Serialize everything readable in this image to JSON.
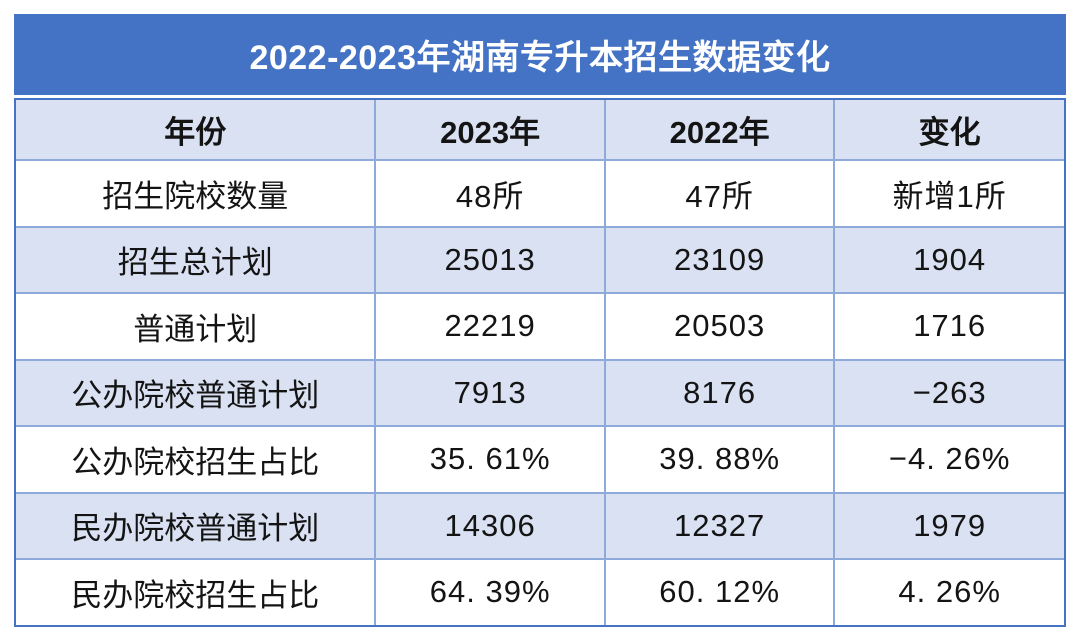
{
  "title": "2022-2023年湖南专升本招生数据变化",
  "colors": {
    "title_bg": "#4472c4",
    "title_text": "#ffffff",
    "band_bg": "#d9e1f2",
    "grid_line": "#8eaadb",
    "outer_border": "#4472c4",
    "text": "#141414"
  },
  "table": {
    "headers": [
      "年份",
      "2023年",
      "2022年",
      "变化"
    ],
    "rows": [
      {
        "label": "招生院校数量",
        "y2023": "48所",
        "y2022": "47所",
        "change": "新增1所"
      },
      {
        "label": "招生总计划",
        "y2023": "25013",
        "y2022": "23109",
        "change": "1904"
      },
      {
        "label": "普通计划",
        "y2023": "22219",
        "y2022": "20503",
        "change": "1716"
      },
      {
        "label": "公办院校普通计划",
        "y2023": "7913",
        "y2022": "8176",
        "change": "−263"
      },
      {
        "label": "公办院校招生占比",
        "y2023": "35. 61%",
        "y2022": "39. 88%",
        "change": "−4. 26%"
      },
      {
        "label": "民办院校普通计划",
        "y2023": "14306",
        "y2022": "12327",
        "change": "1979"
      },
      {
        "label": "民办院校招生占比",
        "y2023": "64. 39%",
        "y2022": "60. 12%",
        "change": "4. 26%"
      }
    ]
  },
  "chart_data": {
    "type": "table",
    "title": "2022-2023年湖南专升本招生数据变化",
    "columns": [
      "年份",
      "2023年",
      "2022年",
      "变化"
    ],
    "rows": [
      [
        "招生院校数量",
        "48所",
        "47所",
        "新增1所"
      ],
      [
        "招生总计划",
        25013,
        23109,
        1904
      ],
      [
        "普通计划",
        22219,
        20503,
        1716
      ],
      [
        "公办院校普通计划",
        7913,
        8176,
        -263
      ],
      [
        "公办院校招生占比",
        "35.61%",
        "39.88%",
        "-4.26%"
      ],
      [
        "民办院校普通计划",
        14306,
        12327,
        1979
      ],
      [
        "民办院校招生占比",
        "64.39%",
        "60.12%",
        "4.26%"
      ]
    ]
  }
}
